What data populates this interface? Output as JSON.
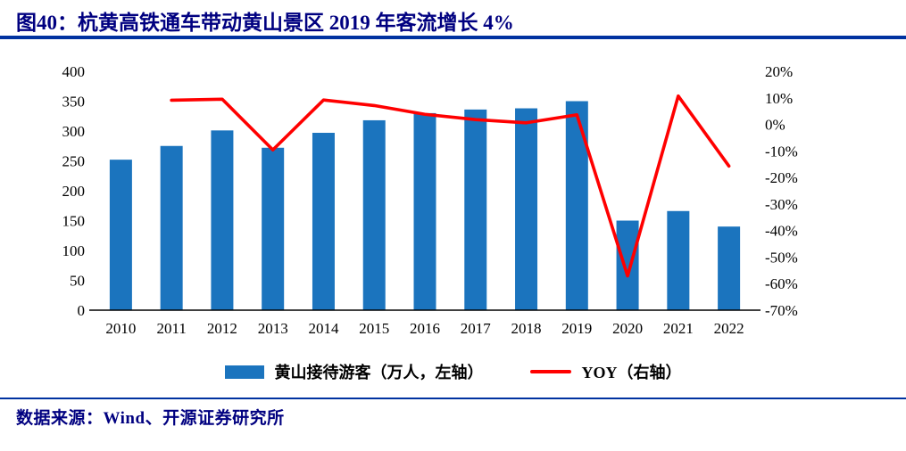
{
  "title": "图40：杭黄高铁通车带动黄山景区 2019 年客流增长 4%",
  "source": "数据来源：Wind、开源证券研究所",
  "colors": {
    "title_text": "#000080",
    "rule_blue": "#0032A0",
    "bar_blue": "#1B74BE",
    "line_red": "#FF0000",
    "axis_text": "#000000"
  },
  "legend": {
    "bars": "黄山接待游客（万人，左轴）",
    "line": "YOY（右轴）"
  },
  "chart_data": {
    "type": "bar+line combo",
    "title": "图40：杭黄高铁通车带动黄山景区 2019 年客流增长 4%",
    "xlabel": "",
    "ylabel_left": "黄山接待游客（万人）",
    "ylabel_right": "YOY（%）",
    "grid": false,
    "legend_position": "bottom",
    "categories": [
      "2010",
      "2011",
      "2012",
      "2013",
      "2014",
      "2015",
      "2016",
      "2017",
      "2018",
      "2019",
      "2020",
      "2021",
      "2022"
    ],
    "series": [
      {
        "name": "黄山接待游客（万人，左轴）",
        "type": "bar",
        "axis": "left",
        "color": "#1B74BE",
        "values": [
          252,
          275,
          301,
          272,
          297,
          318,
          330,
          336,
          338,
          350,
          150,
          166,
          140
        ]
      },
      {
        "name": "YOY（右轴）",
        "type": "line",
        "axis": "right",
        "color": "#FF0000",
        "unit": "%",
        "values": [
          null,
          9.1,
          9.5,
          -9.6,
          9.2,
          7.1,
          3.8,
          1.8,
          0.6,
          3.6,
          -57.1,
          10.7,
          -15.7
        ]
      }
    ],
    "left_axis": {
      "min": 0,
      "max": 400,
      "ticks": [
        {
          "value": 400,
          "label": "400"
        },
        {
          "value": 350,
          "label": "350"
        },
        {
          "value": 300,
          "label": "300"
        },
        {
          "value": 250,
          "label": "250"
        },
        {
          "value": 200,
          "label": "200"
        },
        {
          "value": 150,
          "label": "150"
        },
        {
          "value": 100,
          "label": "100"
        },
        {
          "value": 50,
          "label": "50"
        },
        {
          "value": 0,
          "label": "0"
        }
      ]
    },
    "right_axis": {
      "min": -70,
      "max": 20,
      "ticks": [
        {
          "value": 20,
          "label": "20%"
        },
        {
          "value": 10,
          "label": "10%"
        },
        {
          "value": 0,
          "label": "0%"
        },
        {
          "value": -10,
          "label": "-10%"
        },
        {
          "value": -20,
          "label": "-20%"
        },
        {
          "value": -30,
          "label": "-30%"
        },
        {
          "value": -40,
          "label": "-40%"
        },
        {
          "value": -50,
          "label": "-50%"
        },
        {
          "value": -60,
          "label": "-60%"
        },
        {
          "value": -70,
          "label": "-70%"
        }
      ]
    }
  }
}
